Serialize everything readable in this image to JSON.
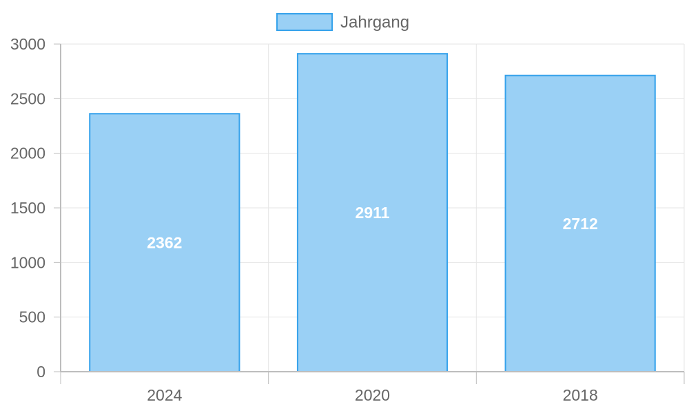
{
  "chart_data": {
    "type": "bar",
    "categories": [
      "2024",
      "2020",
      "2018"
    ],
    "series": [
      {
        "name": "Jahrgang",
        "values": [
          2362,
          2911,
          2712
        ]
      }
    ],
    "data_labels": [
      "2362",
      "2911",
      "2712"
    ],
    "y_ticks": [
      "0",
      "500",
      "1000",
      "1500",
      "2000",
      "2500",
      "3000"
    ],
    "ylim": [
      0,
      3000
    ],
    "legend_position": "top-center",
    "grid": true,
    "colors": {
      "bar_fill": "#9ad0f5",
      "bar_stroke": "#36a2eb",
      "grid": "#e5e5e5",
      "axis": "#bdbdbd",
      "text": "#666666",
      "label": "#ffffff"
    }
  }
}
